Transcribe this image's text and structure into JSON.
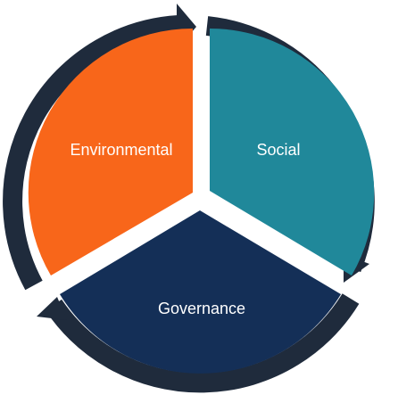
{
  "segments": [
    {
      "id": "environmental",
      "label": "Environmental",
      "color": "#f8661a"
    },
    {
      "id": "social",
      "label": "Social",
      "color": "#20889a"
    },
    {
      "id": "governance",
      "label": "Governance",
      "color": "#142f57"
    }
  ],
  "ring_color": "#1f2b3c",
  "background": "#ffffff",
  "arrow_direction": "clockwise"
}
